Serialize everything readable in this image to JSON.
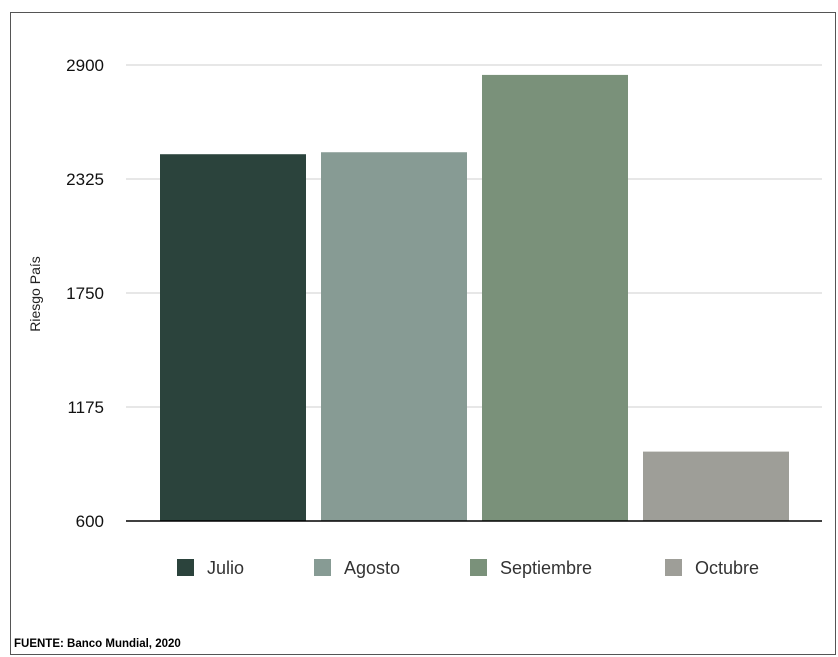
{
  "chart_data": {
    "type": "bar",
    "title": "",
    "xlabel": "",
    "ylabel": "Riesgo País",
    "ylim": [
      600,
      2900
    ],
    "yticks": [
      600,
      1175,
      1750,
      2325,
      2900
    ],
    "grid": true,
    "legend_position": "bottom",
    "series": [
      {
        "name": "Julio",
        "value": 2450,
        "color": "#2b433c"
      },
      {
        "name": "Agosto",
        "value": 2460,
        "color": "#879b94"
      },
      {
        "name": "Septiembre",
        "value": 2850,
        "color": "#7a917a"
      },
      {
        "name": "Octubre",
        "value": 950,
        "color": "#9e9e98"
      }
    ]
  },
  "footer": {
    "source": "FUENTE: Banco Mundial, 2020"
  }
}
